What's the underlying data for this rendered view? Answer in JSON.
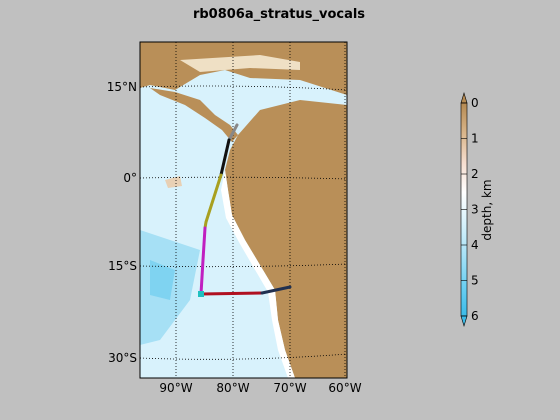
{
  "title": "rb0806a_stratus_vocals",
  "map": {
    "lat_labels": [
      "15°N",
      "0°",
      "15°S",
      "30°S"
    ],
    "lon_labels": [
      "90°W",
      "80°W",
      "70°W",
      "60°W"
    ]
  },
  "colorbar": {
    "title": "depth, km",
    "ticks": [
      0,
      1,
      2,
      3,
      4,
      5,
      6
    ]
  }
}
